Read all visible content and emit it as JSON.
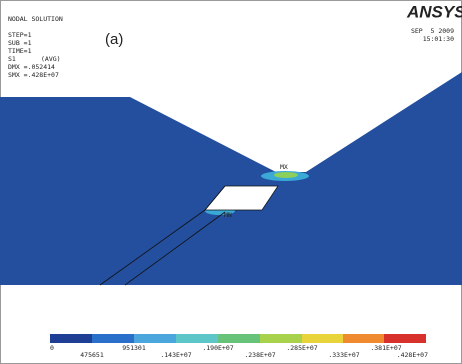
{
  "header": {
    "lines": [
      "NODAL SOLUTION",
      "STEP=1",
      "SUB =1",
      "TIME=1",
      "S1",
      "(AVG)",
      "DMX =.052414",
      "SMX =.428E+07"
    ]
  },
  "panel_label": "(a)",
  "logo": "ANSYS",
  "date": "SEP  5 2009",
  "time": "15:01:30",
  "markers": {
    "max": "MX",
    "min": "MN"
  },
  "legend": {
    "top": [
      "0",
      "951301",
      ".190E+07",
      ".285E+07",
      ".381E+07"
    ],
    "bottom": [
      "475651",
      ".143E+07",
      ".238E+07",
      ".333E+07",
      ".428E+07"
    ]
  }
}
